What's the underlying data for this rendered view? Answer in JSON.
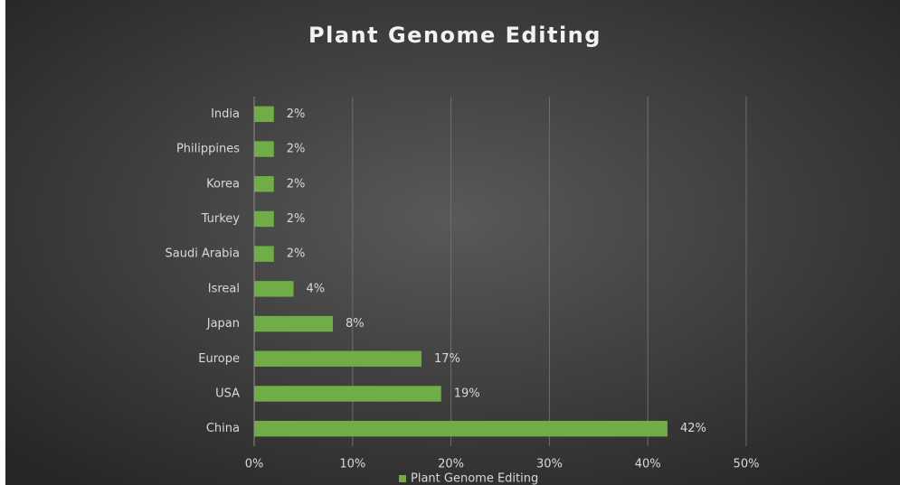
{
  "chart_data": {
    "type": "bar",
    "orientation": "horizontal",
    "title": "Plant Genome Editing",
    "categories": [
      "India",
      "Philippines",
      "Korea",
      "Turkey",
      "Saudi Arabia",
      "Isreal",
      "Japan",
      "Europe",
      "USA",
      "China"
    ],
    "series": [
      {
        "name": "Plant Genome Editing",
        "color": "#70ad47",
        "values": [
          2,
          2,
          2,
          2,
          2,
          4,
          8,
          17,
          19,
          42
        ],
        "value_labels": [
          "2%",
          "2%",
          "2%",
          "2%",
          "2%",
          "4%",
          "8%",
          "17%",
          "19%",
          "42%"
        ]
      }
    ],
    "xlim": [
      0,
      50
    ],
    "xticks": [
      {
        "value": 0,
        "label": "0%"
      },
      {
        "value": 10,
        "label": "10%"
      },
      {
        "value": 20,
        "label": "20%"
      },
      {
        "value": 30,
        "label": "30%"
      },
      {
        "value": 40,
        "label": "40%"
      },
      {
        "value": 50,
        "label": "50%"
      }
    ],
    "grid": true,
    "legend": "bottom"
  }
}
